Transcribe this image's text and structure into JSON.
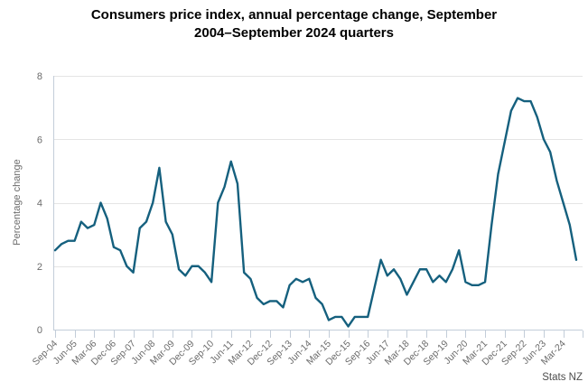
{
  "title": {
    "lines": [
      "Consumers price index, annual percentage change, September",
      "2004–September 2024 quarters"
    ]
  },
  "source": "Stats NZ",
  "colors": {
    "line": "#15607e",
    "grid": "#e4e4e4",
    "axis": "#c3cdd9",
    "tick_label": "#6b6b6b",
    "title_text": "#000000",
    "source_text": "#4d4d4d"
  },
  "chart_data": {
    "type": "line",
    "title": "Consumers price index, annual percentage change, September 2004–September 2024 quarters",
    "xlabel": "",
    "ylabel": "Percentage change",
    "ylim": [
      0,
      8
    ],
    "y_ticks": [
      0,
      2,
      4,
      6,
      8
    ],
    "grid": "horizontal",
    "legend": "none",
    "frequency": "quarterly",
    "x_start": "Sep-04",
    "x_end": "Sep-24",
    "x_tick_every_n_points": 3,
    "x_tick_labels": [
      "Sep-04",
      "Jun-05",
      "Mar-06",
      "Dec-06",
      "Sep-07",
      "Jun-08",
      "Mar-09",
      "Dec-09",
      "Sep-10",
      "Jun-11",
      "Mar-12",
      "Dec-12",
      "Sep-13",
      "Jun-14",
      "Mar-15",
      "Dec-15",
      "Sep-16",
      "Jun-17",
      "Mar-18",
      "Dec-18",
      "Sep-19",
      "Jun-20",
      "Mar-21",
      "Dec-21",
      "Sep-22",
      "Jun-23",
      "Mar-24"
    ],
    "series": [
      {
        "name": "CPI annual percentage change",
        "values": [
          2.5,
          2.7,
          2.8,
          2.8,
          3.4,
          3.2,
          3.3,
          4.0,
          3.5,
          2.6,
          2.5,
          2.0,
          1.8,
          3.2,
          3.4,
          4.0,
          5.1,
          3.4,
          3.0,
          1.9,
          1.7,
          2.0,
          2.0,
          1.8,
          1.5,
          4.0,
          4.5,
          5.3,
          4.6,
          1.8,
          1.6,
          1.0,
          0.8,
          0.9,
          0.9,
          0.7,
          1.4,
          1.6,
          1.5,
          1.6,
          1.0,
          0.8,
          0.3,
          0.4,
          0.4,
          0.1,
          0.4,
          0.4,
          0.4,
          1.3,
          2.2,
          1.7,
          1.9,
          1.6,
          1.1,
          1.5,
          1.9,
          1.9,
          1.5,
          1.7,
          1.5,
          1.9,
          2.5,
          1.5,
          1.4,
          1.4,
          1.5,
          3.3,
          4.9,
          5.9,
          6.9,
          7.3,
          7.2,
          7.2,
          6.7,
          6.0,
          5.6,
          4.7,
          4.0,
          3.3,
          2.2
        ]
      }
    ],
    "source": "Stats NZ"
  }
}
